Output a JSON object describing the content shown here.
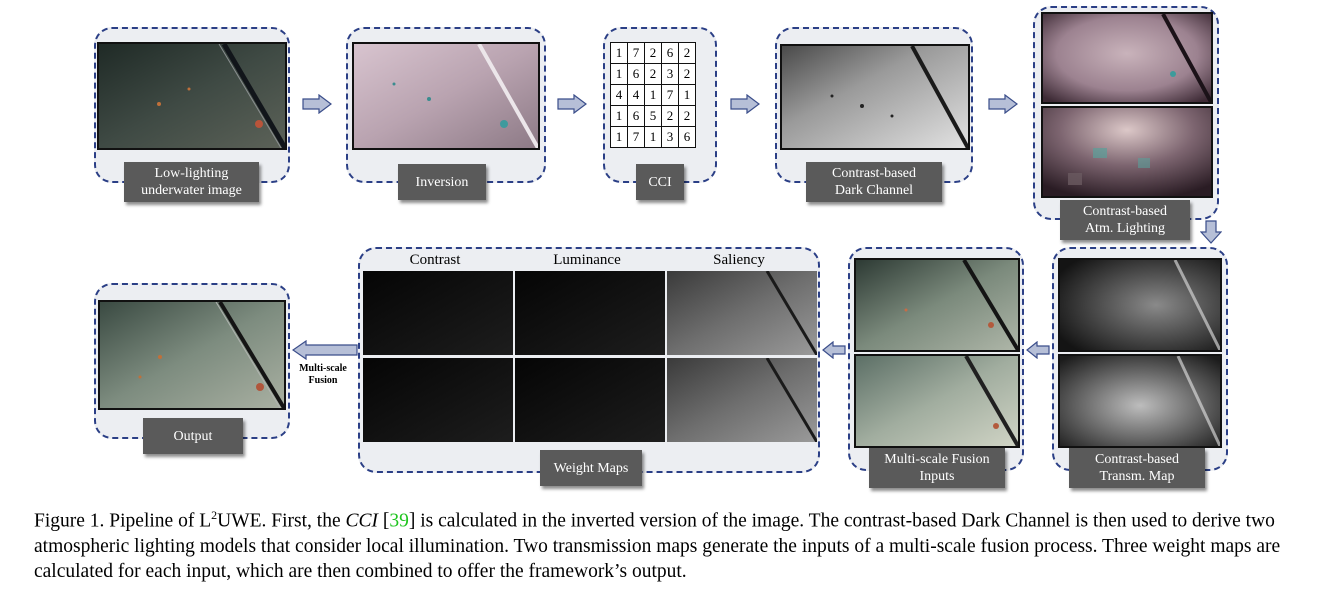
{
  "labels": {
    "input": [
      "Low-lighting",
      "underwater image"
    ],
    "inversion": "Inversion",
    "cci": "CCI",
    "dark_channel": [
      "Contrast-based",
      "Dark Channel"
    ],
    "atm_lighting": [
      "Contrast-based",
      "Atm. Lighting"
    ],
    "transm_map": [
      "Contrast-based",
      "Transm. Map"
    ],
    "fusion_inputs": [
      "Multi-scale Fusion",
      "Inputs"
    ],
    "weight_maps": "Weight Maps",
    "output": "Output",
    "fusion_arrow": [
      "Multi-scale",
      "Fusion"
    ]
  },
  "weight_columns": [
    "Contrast",
    "Luminance",
    "Saliency"
  ],
  "cci_grid": [
    [
      "1",
      "7",
      "2",
      "6",
      "2"
    ],
    [
      "1",
      "6",
      "2",
      "3",
      "2"
    ],
    [
      "4",
      "4",
      "1",
      "7",
      "1"
    ],
    [
      "1",
      "6",
      "5",
      "2",
      "2"
    ],
    [
      "1",
      "7",
      "1",
      "3",
      "6"
    ]
  ],
  "caption": {
    "part1": "Figure 1. Pipeline of L",
    "sup": "2",
    "part2": "UWE. First, the ",
    "cci_symbol": "CCI",
    "cite": "39",
    "part3": " is calculated in the inverted version of the image.  The contrast-based Dark Channel is then used to derive two atmospheric lighting models that consider local illumination. Two transmission maps generate the inputs of a multi-scale fusion process. Three weight maps are calculated for each input, which are then combined to offer the framework’s output."
  },
  "colors": {
    "box_border": "#2b3f86",
    "box_fill": "#eceef2",
    "label_fill": "#5a5a5a",
    "arrow_fill": "#b6bfd7",
    "arrow_stroke": "#3a4d8a",
    "cite": "#1fc41f"
  }
}
